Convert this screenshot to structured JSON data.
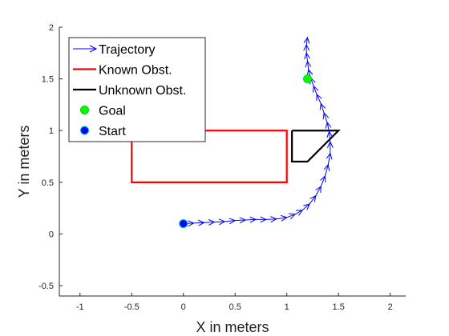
{
  "chart_data": {
    "type": "line",
    "title": "",
    "xlabel": "X in meters",
    "ylabel": "Y in meters",
    "xlim": [
      -1.2,
      2.15
    ],
    "ylim": [
      -0.6,
      2.0
    ],
    "xticks": [
      "-1",
      "-0.5",
      "0",
      "0.5",
      "1",
      "1.5",
      "2"
    ],
    "yticks": [
      "-0.5",
      "0",
      "0.5",
      "1",
      "1.5",
      "2"
    ],
    "grid": false,
    "legend": {
      "position": "top-left",
      "entries": [
        {
          "label": "Trajectory",
          "marker": "arrow",
          "color": "#0000ff"
        },
        {
          "label": "Known Obst.",
          "marker": "line",
          "color": "#ff0000"
        },
        {
          "label": "Unknown Obst.",
          "marker": "line",
          "color": "#000000"
        },
        {
          "label": "Goal",
          "marker": "dot",
          "color": "#00ff00"
        },
        {
          "label": "Start",
          "marker": "dot",
          "color": "#0000ff"
        }
      ]
    },
    "series": [
      {
        "name": "Trajectory",
        "color": "#0000ff",
        "x": [
          0.0,
          0.1,
          0.2,
          0.3,
          0.4,
          0.5,
          0.6,
          0.7,
          0.8,
          0.9,
          1.0,
          1.08,
          1.15,
          1.22,
          1.28,
          1.33,
          1.37,
          1.4,
          1.42,
          1.42,
          1.41,
          1.39,
          1.36,
          1.33,
          1.29,
          1.26,
          1.23,
          1.21,
          1.2,
          1.19,
          1.19,
          1.2
        ],
        "y": [
          0.1,
          0.105,
          0.11,
          0.115,
          0.12,
          0.13,
          0.135,
          0.14,
          0.14,
          0.145,
          0.16,
          0.19,
          0.23,
          0.29,
          0.37,
          0.46,
          0.56,
          0.67,
          0.78,
          0.89,
          0.99,
          1.08,
          1.17,
          1.26,
          1.35,
          1.43,
          1.51,
          1.59,
          1.67,
          1.75,
          1.83,
          1.9
        ]
      }
    ],
    "known_obstacle": {
      "x": [
        -0.5,
        1.0,
        1.0,
        -0.5,
        -0.5
      ],
      "y": [
        1.0,
        1.0,
        0.5,
        0.5,
        1.0
      ]
    },
    "unknown_obstacle": {
      "x": [
        1.05,
        1.5,
        1.2,
        1.05,
        1.05
      ],
      "y": [
        1.0,
        1.0,
        0.7,
        0.7,
        1.0
      ]
    },
    "goal": {
      "x": 1.2,
      "y": 1.5,
      "color": "#00ff00"
    },
    "start": {
      "x": 0.0,
      "y": 0.1,
      "color": "#0000ff"
    }
  }
}
